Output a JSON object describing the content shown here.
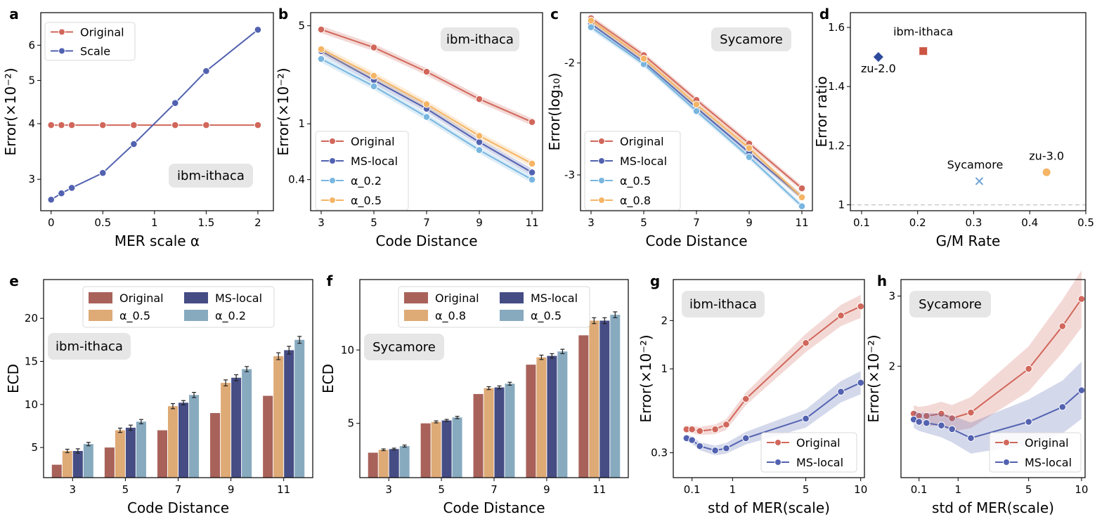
{
  "colors": {
    "red": "#d1675b",
    "blue": "#5262b0",
    "lightblue": "#78b6e0",
    "orange": "#f5b565",
    "bar_red": "#a8625a",
    "bar_orange": "#deaa76",
    "bar_navy": "#454d84",
    "bar_blue": "#87aabf",
    "tag_bg": "#e6e6e6",
    "grid": "#cccccc"
  },
  "chart_data": [
    {
      "panel": "a",
      "type": "line",
      "xlabel": "MER scale α",
      "ylabel": "Error(×10⁻²)",
      "tag": "ibm-ithaca",
      "yscale": "log",
      "xlim": [
        -0.1,
        2.15
      ],
      "ylim": [
        2.55,
        7.1
      ],
      "xticks": [
        0,
        0.5,
        1,
        1.5,
        2
      ],
      "xticklabels": [
        "0",
        "0.5",
        "1",
        "1.5",
        "2"
      ],
      "yticks": [
        3,
        4,
        5,
        6
      ],
      "yticklabels": [
        "3",
        "4",
        "5",
        "6"
      ],
      "series": [
        {
          "name": "Original",
          "color": "red",
          "x": [
            0,
            0.1,
            0.2,
            0.5,
            0.8,
            1.2,
            1.5,
            2
          ],
          "y": [
            3.97,
            3.97,
            3.97,
            3.97,
            3.97,
            3.97,
            3.97,
            3.97
          ]
        },
        {
          "name": "Scale",
          "color": "blue",
          "x": [
            0,
            0.1,
            0.2,
            0.5,
            0.8,
            1.2,
            1.5,
            2
          ],
          "y": [
            2.7,
            2.79,
            2.87,
            3.1,
            3.6,
            4.45,
            5.25,
            6.5
          ]
        }
      ]
    },
    {
      "panel": "b",
      "type": "line",
      "xlabel": "Code Distance",
      "ylabel": "Error(×10⁻²)",
      "tag": "ibm-ithaca",
      "yscale": "log",
      "xlim": [
        2.6,
        11.4
      ],
      "ylim": [
        0.24,
        6.2
      ],
      "xticks": [
        3,
        5,
        7,
        9,
        11
      ],
      "xticklabels": [
        "3",
        "5",
        "7",
        "9",
        "11"
      ],
      "yticks": [
        0.4,
        1,
        5
      ],
      "yticklabels": [
        "0.4",
        "1",
        "5"
      ],
      "series": [
        {
          "name": "Original",
          "color": "red",
          "x": [
            3,
            5,
            7,
            9,
            11
          ],
          "y": [
            4.7,
            3.5,
            2.35,
            1.5,
            1.03
          ]
        },
        {
          "name": "MS-local",
          "color": "blue",
          "x": [
            3,
            5,
            7,
            9,
            11
          ],
          "y": [
            3.3,
            2.05,
            1.28,
            0.74,
            0.45
          ]
        },
        {
          "name": "α_0.2",
          "color": "lightblue",
          "x": [
            3,
            5,
            7,
            9,
            11
          ],
          "y": [
            2.9,
            1.85,
            1.12,
            0.65,
            0.4
          ]
        },
        {
          "name": "α_0.5",
          "color": "orange",
          "x": [
            3,
            5,
            7,
            9,
            11
          ],
          "y": [
            3.4,
            2.2,
            1.38,
            0.82,
            0.52
          ]
        }
      ]
    },
    {
      "panel": "c",
      "type": "line",
      "xlabel": "Code Distance",
      "ylabel": "Error(log₁₀)",
      "tag": "Sycamore",
      "yscale": "linear",
      "xlim": [
        2.6,
        11.4
      ],
      "ylim": [
        -3.32,
        -1.55
      ],
      "xticks": [
        3,
        5,
        7,
        9,
        11
      ],
      "xticklabels": [
        "3",
        "5",
        "7",
        "9",
        "11"
      ],
      "yticks": [
        -3,
        -2
      ],
      "yticklabels": [
        "-3",
        "-2"
      ],
      "series": [
        {
          "name": "Original",
          "color": "red",
          "x": [
            3,
            5,
            7,
            9,
            11
          ],
          "y": [
            -1.6,
            -1.93,
            -2.33,
            -2.72,
            -3.12
          ]
        },
        {
          "name": "MS-local",
          "color": "blue",
          "x": [
            3,
            5,
            7,
            9,
            11
          ],
          "y": [
            -1.65,
            -1.99,
            -2.4,
            -2.8,
            -3.2
          ]
        },
        {
          "name": "α_0.5",
          "color": "lightblue",
          "x": [
            3,
            5,
            7,
            9,
            11
          ],
          "y": [
            -1.68,
            -2.01,
            -2.43,
            -2.84,
            -3.28
          ]
        },
        {
          "name": "α_0.8",
          "color": "orange",
          "x": [
            3,
            5,
            7,
            9,
            11
          ],
          "y": [
            -1.62,
            -1.96,
            -2.37,
            -2.76,
            -3.2
          ]
        }
      ]
    },
    {
      "panel": "d",
      "type": "scatter",
      "xlabel": "G/M Rate",
      "ylabel": "Error ratio",
      "yscale": "linear",
      "xlim": [
        0.08,
        0.5
      ],
      "ylim": [
        0.98,
        1.65
      ],
      "xticks": [
        0.1,
        0.2,
        0.3,
        0.4,
        0.5
      ],
      "xticklabels": [
        "0.1",
        "0.2",
        "0.3",
        "0.4",
        "0.5"
      ],
      "yticks": [
        1,
        1.2,
        1.4,
        1.6
      ],
      "yticklabels": [
        "1",
        "1.2",
        "1.4",
        "1.6"
      ],
      "points": [
        {
          "name": "zu-2.0",
          "x": 0.13,
          "y": 1.5,
          "marker": "diamond",
          "color": "#2f4a9c"
        },
        {
          "name": "ibm-ithaca",
          "x": 0.21,
          "y": 1.52,
          "marker": "square",
          "color": "#cc5544"
        },
        {
          "name": "Sycamore",
          "x": 0.31,
          "y": 1.08,
          "marker": "x",
          "color": "#6fa4d6"
        },
        {
          "name": "zu-3.0",
          "x": 0.43,
          "y": 1.11,
          "marker": "circle",
          "color": "#f5b565"
        }
      ],
      "reference_line": 1.0
    },
    {
      "panel": "e",
      "type": "bar",
      "xlabel": "Code Distance",
      "ylabel": "ECD",
      "tag": "ibm-ithaca",
      "ylim": [
        1.5,
        24.5
      ],
      "categories": [
        "3",
        "5",
        "7",
        "9",
        "11"
      ],
      "yticks": [
        5,
        10,
        15,
        20
      ],
      "yticklabels": [
        "5",
        "10",
        "15",
        "20"
      ],
      "series": [
        {
          "name": "Original",
          "color": "bar_red",
          "values": [
            3,
            5,
            7,
            9,
            11
          ],
          "err": [
            0,
            0,
            0,
            0,
            0
          ]
        },
        {
          "name": "α_0.5",
          "color": "bar_orange",
          "values": [
            4.6,
            7.0,
            9.8,
            12.5,
            15.6
          ],
          "err": [
            0.2,
            0.25,
            0.3,
            0.35,
            0.4
          ]
        },
        {
          "name": "MS-local",
          "color": "bar_navy",
          "values": [
            4.6,
            7.3,
            10.2,
            13.1,
            16.3
          ],
          "err": [
            0.25,
            0.3,
            0.25,
            0.35,
            0.45
          ]
        },
        {
          "name": "α_0.2",
          "color": "bar_blue",
          "values": [
            5.4,
            8.0,
            11.1,
            14.1,
            17.5
          ],
          "err": [
            0.2,
            0.25,
            0.3,
            0.3,
            0.4
          ]
        }
      ]
    },
    {
      "panel": "f",
      "type": "bar",
      "xlabel": "Code Distance",
      "ylabel": "ECD",
      "tag": "Sycamore",
      "ylim": [
        1.3,
        14.8
      ],
      "categories": [
        "3",
        "5",
        "7",
        "9",
        "11"
      ],
      "yticks": [
        5,
        10
      ],
      "yticklabels": [
        "5",
        "10"
      ],
      "series": [
        {
          "name": "Original",
          "color": "bar_red",
          "values": [
            3,
            5,
            7,
            9,
            11
          ],
          "err": [
            0,
            0,
            0,
            0,
            0
          ]
        },
        {
          "name": "α_0.8",
          "color": "bar_orange",
          "values": [
            3.2,
            5.1,
            7.4,
            9.5,
            12.0
          ],
          "err": [
            0.06,
            0.07,
            0.1,
            0.15,
            0.2
          ]
        },
        {
          "name": "MS-local",
          "color": "bar_navy",
          "values": [
            3.25,
            5.2,
            7.45,
            9.6,
            12.0
          ],
          "err": [
            0.06,
            0.07,
            0.1,
            0.15,
            0.2
          ]
        },
        {
          "name": "α_0.5",
          "color": "bar_blue",
          "values": [
            3.45,
            5.4,
            7.7,
            9.9,
            12.4
          ],
          "err": [
            0.07,
            0.08,
            0.1,
            0.15,
            0.2
          ]
        }
      ]
    },
    {
      "panel": "g",
      "type": "line",
      "xlabel": "std of MER(scale)",
      "ylabel": "Error(×10⁻²)",
      "tag": "ibm-ithaca",
      "xscale": "sqrt",
      "yscale": "log",
      "xlim": [
        0,
        10.4
      ],
      "ylim": [
        0.21,
        3.6
      ],
      "xticks": [
        0.1,
        1,
        5,
        10
      ],
      "xticklabels": [
        "0.1",
        "1",
        "5",
        "10"
      ],
      "yticks": [
        0.3,
        1,
        2
      ],
      "yticklabels": [
        "0.3",
        "1",
        "2"
      ],
      "series": [
        {
          "name": "Original",
          "color": "red",
          "x": [
            0.05,
            0.1,
            0.2,
            0.5,
            0.8,
            1.5,
            5,
            8,
            10
          ],
          "y": [
            0.42,
            0.42,
            0.41,
            0.42,
            0.45,
            0.65,
            1.45,
            2.15,
            2.45
          ]
        },
        {
          "name": "MS-local",
          "color": "blue",
          "x": [
            0.05,
            0.1,
            0.2,
            0.5,
            0.8,
            1.5,
            5,
            8,
            10
          ],
          "y": [
            0.37,
            0.36,
            0.33,
            0.31,
            0.32,
            0.37,
            0.49,
            0.72,
            0.82
          ]
        }
      ]
    },
    {
      "panel": "h",
      "type": "line",
      "xlabel": "std of MER(scale)",
      "ylabel": "Error(×10⁻²)",
      "tag": "Sycamore",
      "xscale": "sqrt",
      "yscale": "log",
      "xlim": [
        0,
        10.4
      ],
      "ylim": [
        1.05,
        3.3
      ],
      "xticks": [
        0.1,
        1,
        5,
        10
      ],
      "xticklabels": [
        "0.1",
        "1",
        "5",
        "10"
      ],
      "yticks": [
        2,
        3
      ],
      "yticklabels": [
        "2",
        "3"
      ],
      "series": [
        {
          "name": "Original",
          "color": "red",
          "x": [
            0.05,
            0.1,
            0.2,
            0.5,
            0.8,
            1.5,
            5,
            8,
            10
          ],
          "y": [
            1.52,
            1.5,
            1.5,
            1.52,
            1.48,
            1.53,
            1.97,
            2.52,
            2.95
          ]
        },
        {
          "name": "MS-local",
          "color": "blue",
          "x": [
            0.05,
            0.1,
            0.2,
            0.5,
            0.8,
            1.5,
            5,
            8,
            10
          ],
          "y": [
            1.47,
            1.45,
            1.44,
            1.42,
            1.39,
            1.32,
            1.45,
            1.58,
            1.74
          ]
        }
      ]
    }
  ]
}
